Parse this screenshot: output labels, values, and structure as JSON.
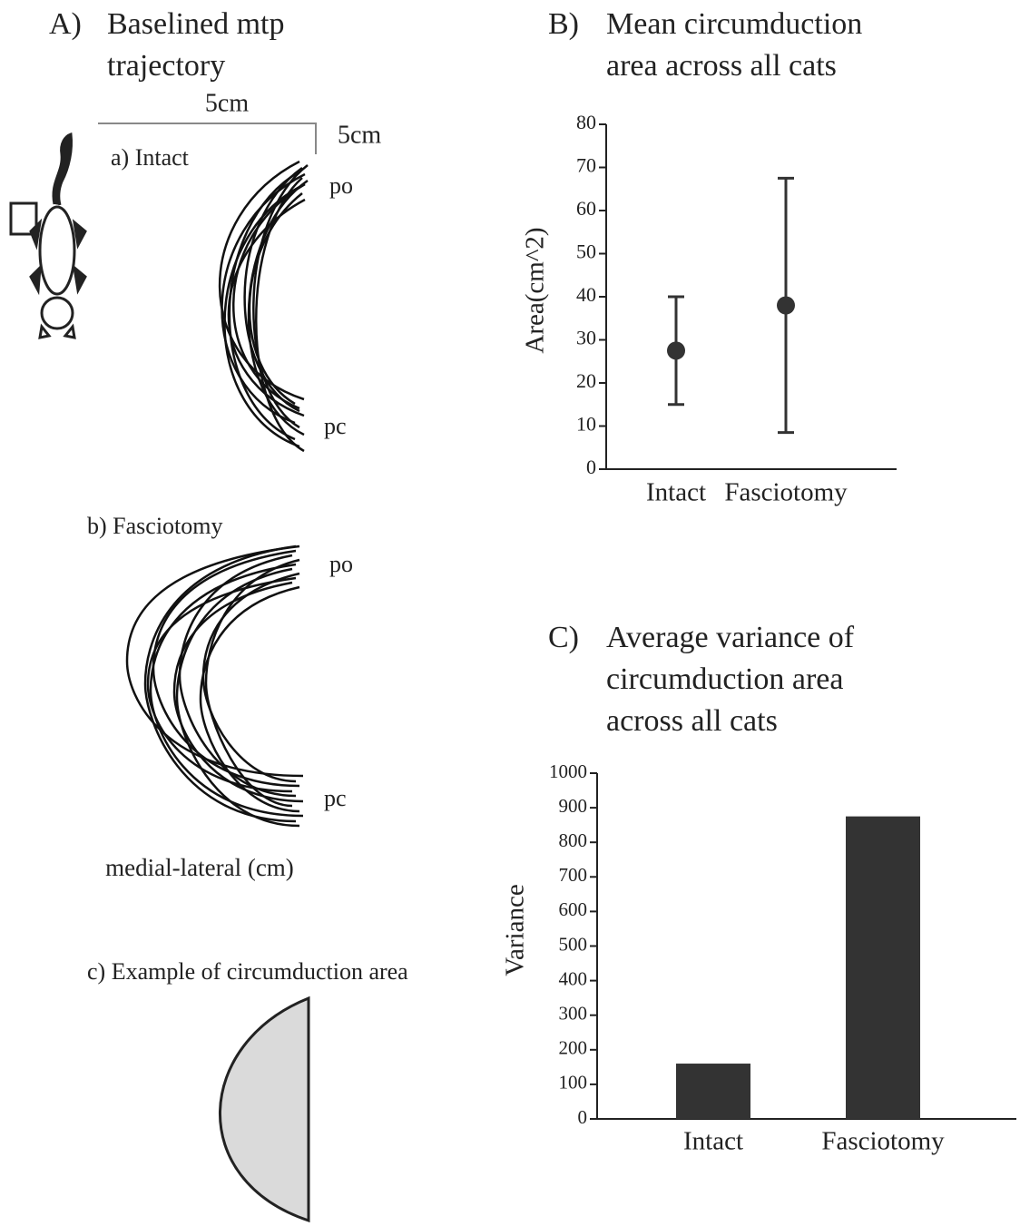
{
  "panel_a": {
    "label": "A)",
    "title": "Baselined mtp trajectory",
    "scale_x": "5cm",
    "scale_y": "5cm",
    "intact": {
      "label": "a) Intact",
      "po": "po",
      "pc": "pc"
    },
    "fasciotomy": {
      "label": "b) Fasciotomy",
      "po": "po",
      "pc": "pc"
    },
    "axis_label": "medial-lateral (cm)",
    "example": "c) Example of circumduction area"
  },
  "chart_data": [
    {
      "type": "errorbar",
      "panel": "B)",
      "title": "Mean circumduction area across all cats",
      "categories": [
        "Intact",
        "Fasciotomy"
      ],
      "values": [
        27.5,
        38
      ],
      "errors": [
        12.5,
        29.5
      ],
      "color": "#333333",
      "y_label": "Area(cm^2)",
      "ylim": [
        0,
        80
      ],
      "yticks": [
        0,
        10,
        20,
        30,
        40,
        50,
        60,
        70,
        80
      ]
    },
    {
      "type": "bar",
      "panel": "C)",
      "title": "Average variance of circumduction area across all cats",
      "categories": [
        "Intact",
        "Fasciotomy"
      ],
      "values": [
        160,
        875
      ],
      "color": "#333333",
      "y_label": "Variance",
      "ylim": [
        0,
        1000
      ],
      "yticks": [
        0,
        100,
        200,
        300,
        400,
        500,
        600,
        700,
        800,
        900,
        1000
      ]
    }
  ]
}
